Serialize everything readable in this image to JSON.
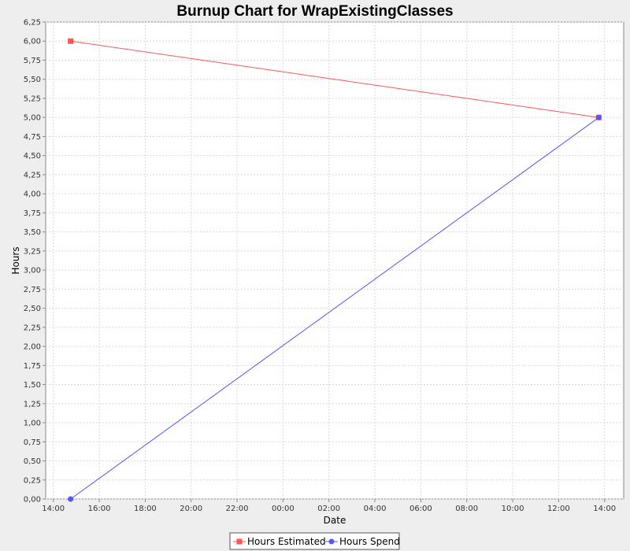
{
  "chart_data": {
    "type": "line",
    "title": "Burnup Chart for WrapExistingClasses",
    "xlabel": "Date",
    "ylabel": "Hours",
    "x_ticks": [
      "14:00",
      "16:00",
      "18:00",
      "20:00",
      "22:00",
      "00:00",
      "02:00",
      "04:00",
      "06:00",
      "08:00",
      "10:00",
      "12:00",
      "14:00"
    ],
    "y_ticks": [
      "0,00",
      "0,25",
      "0,50",
      "0,75",
      "1,00",
      "1,25",
      "1,50",
      "1,75",
      "2,00",
      "2,25",
      "2,50",
      "2,75",
      "3,00",
      "3,25",
      "3,50",
      "3,75",
      "4,00",
      "4,25",
      "4,50",
      "4,75",
      "5,00",
      "5,25",
      "5,50",
      "5,75",
      "6,00",
      "6,25"
    ],
    "ylim": [
      0,
      6.25
    ],
    "xlim": [
      "13:40",
      "14:50 (next day)"
    ],
    "grid": true,
    "legend_position": "bottom",
    "series": [
      {
        "name": "Hours Estimated",
        "color": "#ff5555",
        "marker": "square",
        "points": [
          {
            "x": "14:45",
            "y": 6.0
          },
          {
            "x": "13:45 (next day)",
            "y": 5.0
          }
        ]
      },
      {
        "name": "Hours Spend",
        "color": "#5555ff",
        "marker": "circle",
        "points": [
          {
            "x": "14:45",
            "y": 0.0
          },
          {
            "x": "13:45 (next day)",
            "y": 5.0
          }
        ]
      }
    ]
  },
  "colors": {
    "background": "#eeeeee",
    "plot_background": "#ffffff",
    "grid": "#d9d9d9"
  }
}
